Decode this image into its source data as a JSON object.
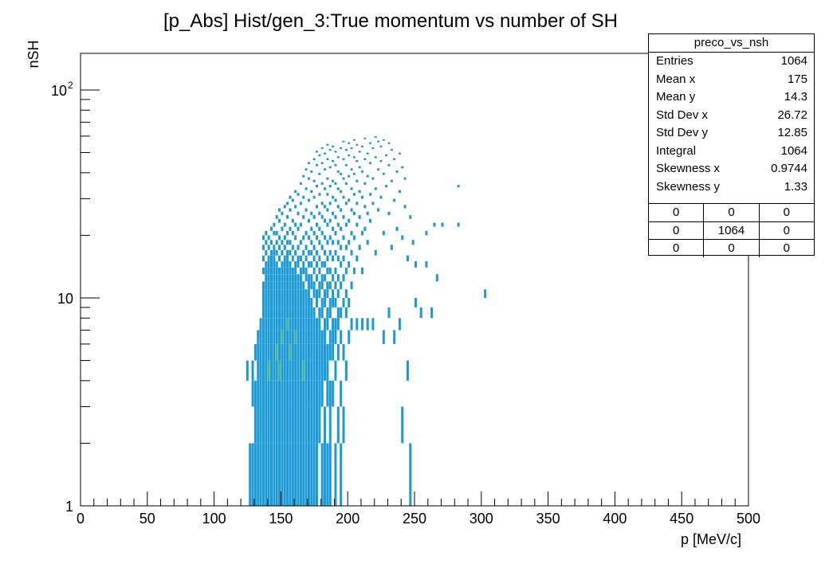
{
  "chart_data": {
    "type": "heatmap",
    "title": "[p_Abs] Hist/gen_3:True momentum vs number of SH",
    "xlabel": "p [MeV/c]",
    "ylabel": "nSH",
    "xlim": [
      0,
      500
    ],
    "ylim": [
      1,
      150
    ],
    "y_scale": "log",
    "grid": false,
    "x_ticks": [
      0,
      50,
      100,
      150,
      200,
      250,
      300,
      350,
      400,
      450,
      500
    ],
    "y_tick_labels": [
      {
        "value": 1,
        "label": "1"
      },
      {
        "value": 10,
        "label": "10"
      },
      {
        "value": 100,
        "label": "10",
        "sup": "2"
      }
    ],
    "colors": {
      "main": "#1c9ad6",
      "dense": "#2aa4c4",
      "peak": "#44b494"
    },
    "columns": [
      {
        "x": 124,
        "ys": [
          4
        ]
      },
      {
        "x": 126,
        "ys": [
          1
        ]
      },
      {
        "x": 128,
        "ys": [
          1,
          3,
          4
        ]
      },
      {
        "x": 130,
        "ys": [
          1,
          2,
          3,
          5
        ]
      },
      {
        "x": 132,
        "ys": [
          1,
          2,
          3,
          4,
          5,
          6
        ]
      },
      {
        "x": 134,
        "ys": [
          1,
          2,
          3,
          4,
          5,
          6,
          7
        ]
      },
      {
        "x": 136,
        "ys": [
          1,
          2,
          3,
          4,
          5,
          6,
          7,
          8,
          9,
          10,
          11,
          13,
          15,
          17,
          19
        ]
      },
      {
        "x": 138,
        "ys": [
          1,
          2,
          3,
          4,
          5,
          6,
          7,
          8,
          9,
          10,
          11,
          12,
          13,
          14,
          16,
          18,
          20
        ]
      },
      {
        "x": 140,
        "ys": [
          1,
          2,
          3,
          4,
          5,
          6,
          7,
          8,
          9,
          10,
          11,
          12,
          13,
          14,
          15,
          17,
          19
        ]
      },
      {
        "x": 142,
        "ys": [
          1,
          2,
          3,
          4,
          5,
          6,
          7,
          8,
          9,
          10,
          11,
          12,
          13,
          14,
          15,
          16,
          18,
          21
        ]
      },
      {
        "x": 144,
        "ys": [
          1,
          2,
          3,
          4,
          5,
          6,
          7,
          8,
          9,
          10,
          11,
          12,
          13,
          14,
          15,
          16,
          17,
          20,
          22
        ]
      },
      {
        "x": 146,
        "ys": [
          1,
          2,
          3,
          4,
          5,
          6,
          7,
          8,
          9,
          10,
          11,
          12,
          13,
          14,
          16,
          18,
          20,
          24
        ]
      },
      {
        "x": 148,
        "ys": [
          1,
          2,
          3,
          4,
          5,
          6,
          7,
          8,
          9,
          10,
          11,
          12,
          13,
          15,
          17,
          19,
          23,
          26
        ]
      },
      {
        "x": 150,
        "ys": [
          1,
          2,
          3,
          4,
          5,
          6,
          7,
          8,
          9,
          10,
          11,
          12,
          13,
          14,
          16,
          18,
          21,
          25
        ]
      },
      {
        "x": 152,
        "ys": [
          1,
          2,
          3,
          4,
          5,
          6,
          7,
          8,
          9,
          10,
          11,
          12,
          13,
          14,
          15,
          17,
          19,
          22,
          27
        ]
      },
      {
        "x": 154,
        "ys": [
          1,
          2,
          3,
          4,
          5,
          6,
          7,
          8,
          9,
          10,
          11,
          12,
          13,
          14,
          15,
          16,
          18,
          20,
          24,
          28
        ]
      },
      {
        "x": 156,
        "ys": [
          1,
          2,
          3,
          4,
          5,
          6,
          7,
          8,
          9,
          10,
          11,
          12,
          13,
          14,
          16,
          18,
          21,
          26,
          30
        ]
      },
      {
        "x": 158,
        "ys": [
          1,
          2,
          3,
          4,
          5,
          6,
          7,
          8,
          9,
          10,
          11,
          12,
          13,
          15,
          17,
          20,
          23,
          29
        ]
      },
      {
        "x": 160,
        "ys": [
          1,
          2,
          3,
          4,
          5,
          6,
          7,
          8,
          9,
          10,
          11,
          12,
          13,
          14,
          16,
          19,
          22,
          27,
          32
        ]
      },
      {
        "x": 162,
        "ys": [
          1,
          2,
          3,
          4,
          5,
          6,
          7,
          8,
          9,
          10,
          11,
          12,
          14,
          15,
          17,
          21,
          25,
          31
        ]
      },
      {
        "x": 164,
        "ys": [
          1,
          2,
          3,
          4,
          5,
          6,
          7,
          8,
          9,
          10,
          11,
          12,
          13,
          15,
          18,
          22,
          28,
          35
        ]
      },
      {
        "x": 166,
        "ys": [
          1,
          2,
          3,
          4,
          5,
          6,
          7,
          8,
          9,
          10,
          11,
          13,
          14,
          16,
          19,
          24,
          30,
          38
        ]
      },
      {
        "x": 168,
        "ys": [
          1,
          2,
          3,
          4,
          5,
          6,
          7,
          8,
          9,
          10,
          12,
          13,
          15,
          17,
          20,
          26,
          33,
          41
        ]
      },
      {
        "x": 170,
        "ys": [
          1,
          2,
          3,
          4,
          5,
          6,
          7,
          8,
          9,
          10,
          11,
          12,
          14,
          16,
          19,
          23,
          29,
          37,
          44
        ]
      },
      {
        "x": 172,
        "ys": [
          1,
          2,
          3,
          4,
          5,
          6,
          7,
          8,
          9,
          11,
          12,
          14,
          16,
          18,
          21,
          25,
          32,
          40
        ]
      },
      {
        "x": 174,
        "ys": [
          1,
          2,
          3,
          4,
          5,
          6,
          7,
          8,
          10,
          11,
          13,
          15,
          17,
          20,
          24,
          30,
          36,
          46
        ]
      },
      {
        "x": 176,
        "ys": [
          1,
          2,
          3,
          4,
          5,
          6,
          7,
          9,
          10,
          12,
          14,
          16,
          19,
          22,
          27,
          34,
          43,
          50
        ]
      },
      {
        "x": 178,
        "ys": [
          2,
          3,
          4,
          5,
          6,
          7,
          8,
          10,
          11,
          13,
          15,
          18,
          21,
          25,
          31,
          39,
          48
        ]
      },
      {
        "x": 180,
        "ys": [
          1,
          3,
          4,
          5,
          6,
          8,
          9,
          11,
          12,
          14,
          17,
          20,
          24,
          28,
          35,
          44,
          52
        ]
      },
      {
        "x": 182,
        "ys": [
          1,
          2,
          4,
          5,
          6,
          7,
          9,
          10,
          12,
          14,
          16,
          19,
          23,
          27,
          33,
          41,
          49
        ]
      },
      {
        "x": 184,
        "ys": [
          1,
          3,
          4,
          5,
          7,
          8,
          10,
          11,
          13,
          15,
          18,
          22,
          26,
          31,
          37,
          46,
          54
        ]
      },
      {
        "x": 186,
        "ys": [
          1,
          2,
          3,
          5,
          6,
          8,
          9,
          11,
          13,
          16,
          19,
          23,
          28,
          34,
          42,
          51
        ]
      },
      {
        "x": 188,
        "ys": [
          3,
          5,
          6,
          7,
          9,
          10,
          12,
          15,
          18,
          21,
          25,
          30,
          36,
          45,
          53
        ]
      },
      {
        "x": 190,
        "ys": [
          1,
          4,
          6,
          7,
          9,
          11,
          13,
          16,
          20,
          24,
          29,
          35,
          43,
          50
        ]
      },
      {
        "x": 192,
        "ys": [
          2,
          5,
          7,
          8,
          10,
          12,
          15,
          18,
          22,
          27,
          33,
          40,
          47
        ]
      },
      {
        "x": 194,
        "ys": [
          1,
          3,
          6,
          8,
          11,
          14,
          17,
          21,
          26,
          32,
          39,
          52
        ]
      },
      {
        "x": 196,
        "ys": [
          2,
          5,
          9,
          12,
          15,
          19,
          24,
          30,
          37,
          46,
          56
        ]
      },
      {
        "x": 198,
        "ys": [
          4,
          8,
          10,
          13,
          17,
          22,
          28,
          35,
          43,
          51
        ]
      },
      {
        "x": 200,
        "ys": [
          6,
          9,
          14,
          18,
          23,
          29,
          38,
          48,
          55
        ]
      },
      {
        "x": 202,
        "ys": [
          7,
          11,
          16,
          20,
          26,
          33,
          41,
          52
        ]
      },
      {
        "x": 204,
        "ys": [
          13,
          19,
          25,
          31,
          39,
          47,
          57
        ]
      },
      {
        "x": 206,
        "ys": [
          7,
          15,
          22,
          28,
          36,
          45,
          54
        ]
      },
      {
        "x": 208,
        "ys": [
          17,
          24,
          32,
          42,
          50
        ]
      },
      {
        "x": 210,
        "ys": [
          7,
          13,
          20,
          30,
          40,
          53
        ]
      },
      {
        "x": 212,
        "ys": [
          21,
          27,
          35,
          46,
          58
        ]
      },
      {
        "x": 214,
        "ys": [
          7,
          18,
          25,
          38,
          49
        ]
      },
      {
        "x": 216,
        "ys": [
          23,
          31,
          44,
          55
        ]
      },
      {
        "x": 218,
        "ys": [
          7,
          28,
          37,
          52
        ]
      },
      {
        "x": 220,
        "ys": [
          16,
          33,
          47,
          59
        ]
      },
      {
        "x": 222,
        "ys": [
          26,
          41,
          56
        ]
      },
      {
        "x": 224,
        "ys": [
          30,
          45,
          53
        ]
      },
      {
        "x": 226,
        "ys": [
          6,
          20,
          39,
          57
        ]
      },
      {
        "x": 228,
        "ys": [
          34,
          48
        ]
      },
      {
        "x": 230,
        "ys": [
          8,
          25,
          43,
          55
        ]
      },
      {
        "x": 232,
        "ys": [
          17,
          36,
          51
        ]
      },
      {
        "x": 234,
        "ys": [
          6,
          29,
          46
        ]
      },
      {
        "x": 236,
        "ys": [
          21,
          40
        ]
      },
      {
        "x": 238,
        "ys": [
          7,
          32,
          49
        ]
      },
      {
        "x": 240,
        "ys": [
          2,
          19,
          42
        ]
      },
      {
        "x": 242,
        "ys": [
          27,
          37
        ]
      },
      {
        "x": 244,
        "ys": [
          4,
          15
        ]
      },
      {
        "x": 246,
        "ys": [
          1,
          24
        ]
      },
      {
        "x": 248,
        "ys": [
          18
        ]
      },
      {
        "x": 250,
        "ys": [
          9,
          14
        ]
      },
      {
        "x": 254,
        "ys": [
          8
        ]
      },
      {
        "x": 258,
        "ys": [
          14,
          20
        ]
      },
      {
        "x": 262,
        "ys": [
          8
        ]
      },
      {
        "x": 264,
        "ys": [
          22
        ]
      },
      {
        "x": 266,
        "ys": [
          12
        ]
      },
      {
        "x": 270,
        "ys": [
          22
        ]
      },
      {
        "x": 282,
        "ys": [
          22,
          34
        ]
      },
      {
        "x": 302,
        "ys": [
          10
        ]
      }
    ],
    "peak_cells": [
      {
        "x": 140,
        "y": 4
      },
      {
        "x": 146,
        "y": 5
      },
      {
        "x": 148,
        "y": 4
      },
      {
        "x": 150,
        "y": 6
      },
      {
        "x": 154,
        "y": 7
      },
      {
        "x": 156,
        "y": 5
      },
      {
        "x": 160,
        "y": 6
      },
      {
        "x": 166,
        "y": 4
      }
    ]
  },
  "stats_box": {
    "title": "preco_vs_nsh",
    "rows": [
      {
        "label": "Entries",
        "value": "1064"
      },
      {
        "label": "Mean x",
        "value": "175"
      },
      {
        "label": "Mean y",
        "value": "14.3"
      },
      {
        "label": "Std Dev x",
        "value": "26.72"
      },
      {
        "label": "Std Dev y",
        "value": "12.85"
      },
      {
        "label": "Integral",
        "value": "1064"
      },
      {
        "label": "Skewness x",
        "value": "0.9744"
      },
      {
        "label": "Skewness y",
        "value": "1.33"
      }
    ],
    "grid": [
      [
        "0",
        "0",
        "0"
      ],
      [
        "0",
        "1064",
        "0"
      ],
      [
        "0",
        "0",
        "0"
      ]
    ]
  }
}
